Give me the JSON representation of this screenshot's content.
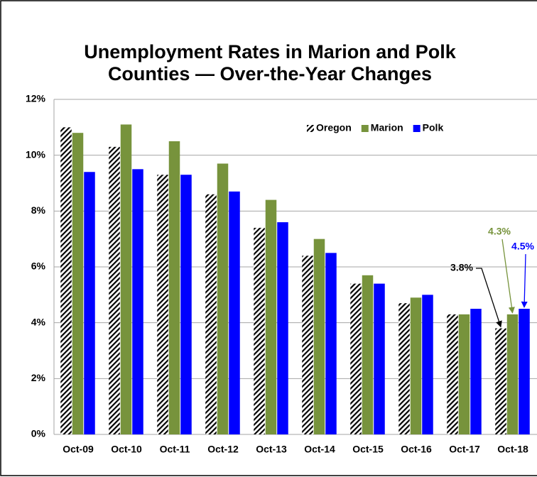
{
  "chart_data": {
    "type": "bar",
    "title": "Unemployment Rates in Marion and Polk Counties — Over-the-Year Changes",
    "categories": [
      "Oct-09",
      "Oct-10",
      "Oct-11",
      "Oct-12",
      "Oct-13",
      "Oct-14",
      "Oct-15",
      "Oct-16",
      "Oct-17",
      "Oct-18"
    ],
    "series": [
      {
        "name": "Oregon",
        "color": "hatch",
        "values": [
          11.0,
          10.3,
          9.3,
          8.6,
          7.4,
          6.4,
          5.4,
          4.7,
          4.3,
          3.8
        ]
      },
      {
        "name": "Marion",
        "color": "#77933c",
        "values": [
          10.8,
          11.1,
          10.5,
          9.7,
          8.4,
          7.0,
          5.7,
          4.9,
          4.3,
          4.3
        ]
      },
      {
        "name": "Polk",
        "color": "#0000ff",
        "values": [
          9.4,
          9.5,
          9.3,
          8.7,
          7.6,
          6.5,
          5.4,
          5.0,
          4.5,
          4.5
        ]
      }
    ],
    "ylim": [
      0,
      12
    ],
    "yticks": [
      {
        "value": 0,
        "label": "0%"
      },
      {
        "value": 2,
        "label": "2%"
      },
      {
        "value": 4,
        "label": "4%"
      },
      {
        "value": 6,
        "label": "6%"
      },
      {
        "value": 8,
        "label": "8%"
      },
      {
        "value": 10,
        "label": "10%"
      },
      {
        "value": 12,
        "label": "12%"
      }
    ],
    "grid": true,
    "legend": "top-right",
    "annotations": [
      {
        "text": "3.8%",
        "color": "#000000"
      },
      {
        "text": "4.3%",
        "color": "#77933c"
      },
      {
        "text": "4.5%",
        "color": "#0000ff"
      }
    ]
  }
}
